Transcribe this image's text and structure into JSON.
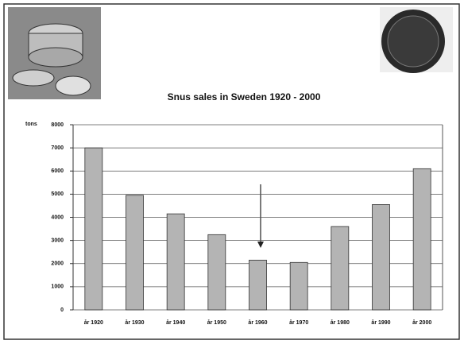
{
  "chart_data": {
    "type": "bar",
    "title": "Snus sales in Sweden 1920 - 2000",
    "y_label": "tons",
    "categories": [
      "år 1920",
      "år 1930",
      "år 1940",
      "år 1950",
      "år 1960",
      "år 1970",
      "år 1980",
      "år 1990",
      "år 2000"
    ],
    "values": [
      7000,
      4950,
      4150,
      3250,
      2150,
      2050,
      3600,
      4550,
      6100
    ],
    "color": "#b4b4b4",
    "ylim": [
      0,
      8000
    ],
    "yticks": [
      0,
      1000,
      2000,
      3000,
      4000,
      5000,
      6000,
      7000,
      8000
    ],
    "grid": true
  }
}
